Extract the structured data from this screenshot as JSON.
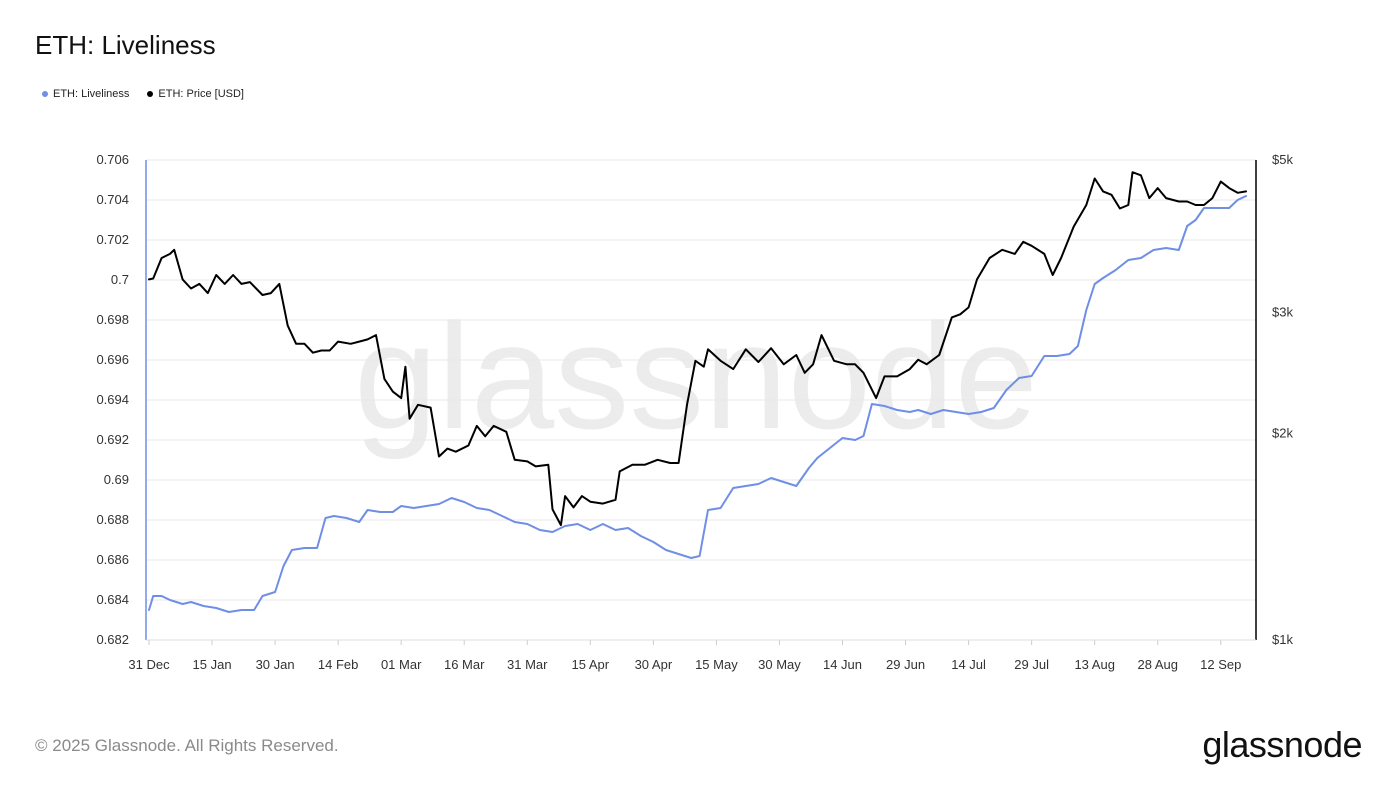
{
  "title": "ETH: Liveliness",
  "footer": {
    "copyright": "© 2025 Glassnode. All Rights Reserved.",
    "logo_text": "glassnode",
    "watermark": "glassnode"
  },
  "colors": {
    "liveliness": "#6f8ee6",
    "price": "#000000",
    "grid": "#e9e9e9",
    "axis_text": "#333333",
    "watermark": "#ececec"
  },
  "chart_data": {
    "type": "line",
    "title": "ETH: Liveliness",
    "legend": [
      "ETH: Liveliness",
      "ETH: Price [USD]"
    ],
    "legend_position": "top-left",
    "grid": true,
    "x_ticks": [
      "31 Dec",
      "15 Jan",
      "30 Jan",
      "14 Feb",
      "01 Mar",
      "16 Mar",
      "31 Mar",
      "15 Apr",
      "30 Apr",
      "15 May",
      "30 May",
      "14 Jun",
      "29 Jun",
      "14 Jul",
      "29 Jul",
      "13 Aug",
      "28 Aug",
      "12 Sep"
    ],
    "x_range": [
      "2024-12-31",
      "2025-09-18"
    ],
    "y_left": {
      "min": 0.682,
      "max": 0.706,
      "ticks": [
        "0.682",
        "0.684",
        "0.686",
        "0.688",
        "0.69",
        "0.692",
        "0.694",
        "0.696",
        "0.698",
        "0.7",
        "0.702",
        "0.704",
        "0.706"
      ]
    },
    "y_right": {
      "scale": "log",
      "min": 1000,
      "max": 5000,
      "ticks": [
        {
          "label": "$1k",
          "value": 1000
        },
        {
          "label": "$2k",
          "value": 2000
        },
        {
          "label": "$3k",
          "value": 3000
        },
        {
          "label": "$5k",
          "value": 5000
        }
      ]
    },
    "series": [
      {
        "name": "ETH: Liveliness",
        "axis": "left",
        "points": [
          [
            "2024-12-31",
            0.6835
          ],
          [
            "2025-01-01",
            0.6842
          ],
          [
            "2025-01-03",
            0.6842
          ],
          [
            "2025-01-05",
            0.684
          ],
          [
            "2025-01-08",
            0.6838
          ],
          [
            "2025-01-10",
            0.6839
          ],
          [
            "2025-01-13",
            0.6837
          ],
          [
            "2025-01-16",
            0.6836
          ],
          [
            "2025-01-19",
            0.6834
          ],
          [
            "2025-01-22",
            0.6835
          ],
          [
            "2025-01-25",
            0.6835
          ],
          [
            "2025-01-27",
            0.6842
          ],
          [
            "2025-01-30",
            0.6844
          ],
          [
            "2025-02-01",
            0.6857
          ],
          [
            "2025-02-03",
            0.6865
          ],
          [
            "2025-02-06",
            0.6866
          ],
          [
            "2025-02-09",
            0.6866
          ],
          [
            "2025-02-11",
            0.6881
          ],
          [
            "2025-02-13",
            0.6882
          ],
          [
            "2025-02-16",
            0.6881
          ],
          [
            "2025-02-19",
            0.6879
          ],
          [
            "2025-02-21",
            0.6885
          ],
          [
            "2025-02-24",
            0.6884
          ],
          [
            "2025-02-27",
            0.6884
          ],
          [
            "2025-03-01",
            0.6887
          ],
          [
            "2025-03-04",
            0.6886
          ],
          [
            "2025-03-07",
            0.6887
          ],
          [
            "2025-03-10",
            0.6888
          ],
          [
            "2025-03-13",
            0.6891
          ],
          [
            "2025-03-16",
            0.6889
          ],
          [
            "2025-03-19",
            0.6886
          ],
          [
            "2025-03-22",
            0.6885
          ],
          [
            "2025-03-25",
            0.6882
          ],
          [
            "2025-03-28",
            0.6879
          ],
          [
            "2025-03-31",
            0.6878
          ],
          [
            "2025-04-03",
            0.6875
          ],
          [
            "2025-04-06",
            0.6874
          ],
          [
            "2025-04-09",
            0.6877
          ],
          [
            "2025-04-12",
            0.6878
          ],
          [
            "2025-04-15",
            0.6875
          ],
          [
            "2025-04-18",
            0.6878
          ],
          [
            "2025-04-21",
            0.6875
          ],
          [
            "2025-04-24",
            0.6876
          ],
          [
            "2025-04-27",
            0.6872
          ],
          [
            "2025-04-30",
            0.6869
          ],
          [
            "2025-05-03",
            0.6865
          ],
          [
            "2025-05-06",
            0.6863
          ],
          [
            "2025-05-09",
            0.6861
          ],
          [
            "2025-05-11",
            0.6862
          ],
          [
            "2025-05-13",
            0.6885
          ],
          [
            "2025-05-16",
            0.6886
          ],
          [
            "2025-05-19",
            0.6896
          ],
          [
            "2025-05-22",
            0.6897
          ],
          [
            "2025-05-25",
            0.6898
          ],
          [
            "2025-05-28",
            0.6901
          ],
          [
            "2025-05-31",
            0.6899
          ],
          [
            "2025-06-03",
            0.6897
          ],
          [
            "2025-06-06",
            0.6906
          ],
          [
            "2025-06-08",
            0.6911
          ],
          [
            "2025-06-11",
            0.6916
          ],
          [
            "2025-06-14",
            0.6921
          ],
          [
            "2025-06-17",
            0.692
          ],
          [
            "2025-06-19",
            0.6922
          ],
          [
            "2025-06-21",
            0.6938
          ],
          [
            "2025-06-24",
            0.6937
          ],
          [
            "2025-06-27",
            0.6935
          ],
          [
            "2025-06-30",
            0.6934
          ],
          [
            "2025-07-02",
            0.6935
          ],
          [
            "2025-07-05",
            0.6933
          ],
          [
            "2025-07-08",
            0.6935
          ],
          [
            "2025-07-11",
            0.6934
          ],
          [
            "2025-07-14",
            0.6933
          ],
          [
            "2025-07-17",
            0.6934
          ],
          [
            "2025-07-20",
            0.6936
          ],
          [
            "2025-07-23",
            0.6945
          ],
          [
            "2025-07-26",
            0.6951
          ],
          [
            "2025-07-29",
            0.6952
          ],
          [
            "2025-08-01",
            0.6962
          ],
          [
            "2025-08-04",
            0.6962
          ],
          [
            "2025-08-07",
            0.6963
          ],
          [
            "2025-08-09",
            0.6967
          ],
          [
            "2025-08-11",
            0.6985
          ],
          [
            "2025-08-13",
            0.6998
          ],
          [
            "2025-08-15",
            0.7001
          ],
          [
            "2025-08-18",
            0.7005
          ],
          [
            "2025-08-21",
            0.701
          ],
          [
            "2025-08-24",
            0.7011
          ],
          [
            "2025-08-27",
            0.7015
          ],
          [
            "2025-08-30",
            0.7016
          ],
          [
            "2025-09-02",
            0.7015
          ],
          [
            "2025-09-04",
            0.7027
          ],
          [
            "2025-09-06",
            0.703
          ],
          [
            "2025-09-08",
            0.7036
          ],
          [
            "2025-09-11",
            0.7036
          ],
          [
            "2025-09-14",
            0.7036
          ],
          [
            "2025-09-16",
            0.704
          ],
          [
            "2025-09-18",
            0.7042
          ]
        ]
      },
      {
        "name": "ETH: Price [USD]",
        "axis": "right",
        "points": [
          [
            "2024-12-31",
            3350
          ],
          [
            "2025-01-01",
            3360
          ],
          [
            "2025-01-03",
            3600
          ],
          [
            "2025-01-05",
            3650
          ],
          [
            "2025-01-06",
            3700
          ],
          [
            "2025-01-08",
            3350
          ],
          [
            "2025-01-10",
            3250
          ],
          [
            "2025-01-12",
            3300
          ],
          [
            "2025-01-14",
            3200
          ],
          [
            "2025-01-16",
            3400
          ],
          [
            "2025-01-18",
            3300
          ],
          [
            "2025-01-20",
            3400
          ],
          [
            "2025-01-22",
            3300
          ],
          [
            "2025-01-24",
            3320
          ],
          [
            "2025-01-27",
            3180
          ],
          [
            "2025-01-29",
            3200
          ],
          [
            "2025-01-31",
            3300
          ],
          [
            "2025-02-02",
            2870
          ],
          [
            "2025-02-04",
            2700
          ],
          [
            "2025-02-06",
            2700
          ],
          [
            "2025-02-08",
            2620
          ],
          [
            "2025-02-10",
            2640
          ],
          [
            "2025-02-12",
            2640
          ],
          [
            "2025-02-14",
            2720
          ],
          [
            "2025-02-17",
            2700
          ],
          [
            "2025-02-19",
            2720
          ],
          [
            "2025-02-21",
            2740
          ],
          [
            "2025-02-23",
            2780
          ],
          [
            "2025-02-25",
            2400
          ],
          [
            "2025-02-27",
            2300
          ],
          [
            "2025-03-01",
            2250
          ],
          [
            "2025-03-02",
            2500
          ],
          [
            "2025-03-03",
            2100
          ],
          [
            "2025-03-05",
            2200
          ],
          [
            "2025-03-08",
            2180
          ],
          [
            "2025-03-10",
            1850
          ],
          [
            "2025-03-12",
            1900
          ],
          [
            "2025-03-14",
            1880
          ],
          [
            "2025-03-17",
            1920
          ],
          [
            "2025-03-19",
            2050
          ],
          [
            "2025-03-21",
            1980
          ],
          [
            "2025-03-23",
            2050
          ],
          [
            "2025-03-26",
            2010
          ],
          [
            "2025-03-28",
            1830
          ],
          [
            "2025-03-31",
            1820
          ],
          [
            "2025-04-02",
            1790
          ],
          [
            "2025-04-05",
            1800
          ],
          [
            "2025-04-06",
            1550
          ],
          [
            "2025-04-08",
            1470
          ],
          [
            "2025-04-09",
            1620
          ],
          [
            "2025-04-11",
            1560
          ],
          [
            "2025-04-13",
            1620
          ],
          [
            "2025-04-15",
            1590
          ],
          [
            "2025-04-18",
            1580
          ],
          [
            "2025-04-21",
            1600
          ],
          [
            "2025-04-22",
            1760
          ],
          [
            "2025-04-25",
            1800
          ],
          [
            "2025-04-28",
            1800
          ],
          [
            "2025-05-01",
            1830
          ],
          [
            "2025-05-04",
            1810
          ],
          [
            "2025-05-06",
            1810
          ],
          [
            "2025-05-08",
            2200
          ],
          [
            "2025-05-10",
            2550
          ],
          [
            "2025-05-12",
            2500
          ],
          [
            "2025-05-13",
            2650
          ],
          [
            "2025-05-16",
            2550
          ],
          [
            "2025-05-19",
            2480
          ],
          [
            "2025-05-22",
            2650
          ],
          [
            "2025-05-25",
            2540
          ],
          [
            "2025-05-28",
            2660
          ],
          [
            "2025-05-31",
            2520
          ],
          [
            "2025-06-03",
            2600
          ],
          [
            "2025-06-05",
            2450
          ],
          [
            "2025-06-07",
            2520
          ],
          [
            "2025-06-09",
            2780
          ],
          [
            "2025-06-12",
            2550
          ],
          [
            "2025-06-15",
            2520
          ],
          [
            "2025-06-17",
            2520
          ],
          [
            "2025-06-19",
            2450
          ],
          [
            "2025-06-22",
            2250
          ],
          [
            "2025-06-24",
            2420
          ],
          [
            "2025-06-27",
            2420
          ],
          [
            "2025-06-30",
            2480
          ],
          [
            "2025-07-02",
            2560
          ],
          [
            "2025-07-04",
            2520
          ],
          [
            "2025-07-07",
            2600
          ],
          [
            "2025-07-10",
            2950
          ],
          [
            "2025-07-12",
            2980
          ],
          [
            "2025-07-14",
            3050
          ],
          [
            "2025-07-16",
            3350
          ],
          [
            "2025-07-19",
            3600
          ],
          [
            "2025-07-22",
            3700
          ],
          [
            "2025-07-25",
            3650
          ],
          [
            "2025-07-27",
            3800
          ],
          [
            "2025-07-29",
            3750
          ],
          [
            "2025-08-01",
            3650
          ],
          [
            "2025-08-03",
            3400
          ],
          [
            "2025-08-05",
            3600
          ],
          [
            "2025-08-08",
            4000
          ],
          [
            "2025-08-11",
            4300
          ],
          [
            "2025-08-13",
            4700
          ],
          [
            "2025-08-15",
            4500
          ],
          [
            "2025-08-17",
            4450
          ],
          [
            "2025-08-19",
            4250
          ],
          [
            "2025-08-21",
            4300
          ],
          [
            "2025-08-22",
            4800
          ],
          [
            "2025-08-24",
            4750
          ],
          [
            "2025-08-26",
            4400
          ],
          [
            "2025-08-28",
            4550
          ],
          [
            "2025-08-30",
            4400
          ],
          [
            "2025-09-02",
            4350
          ],
          [
            "2025-09-04",
            4350
          ],
          [
            "2025-09-06",
            4300
          ],
          [
            "2025-09-08",
            4300
          ],
          [
            "2025-09-10",
            4400
          ],
          [
            "2025-09-12",
            4650
          ],
          [
            "2025-09-14",
            4550
          ],
          [
            "2025-09-16",
            4480
          ],
          [
            "2025-09-18",
            4500
          ]
        ]
      }
    ]
  }
}
